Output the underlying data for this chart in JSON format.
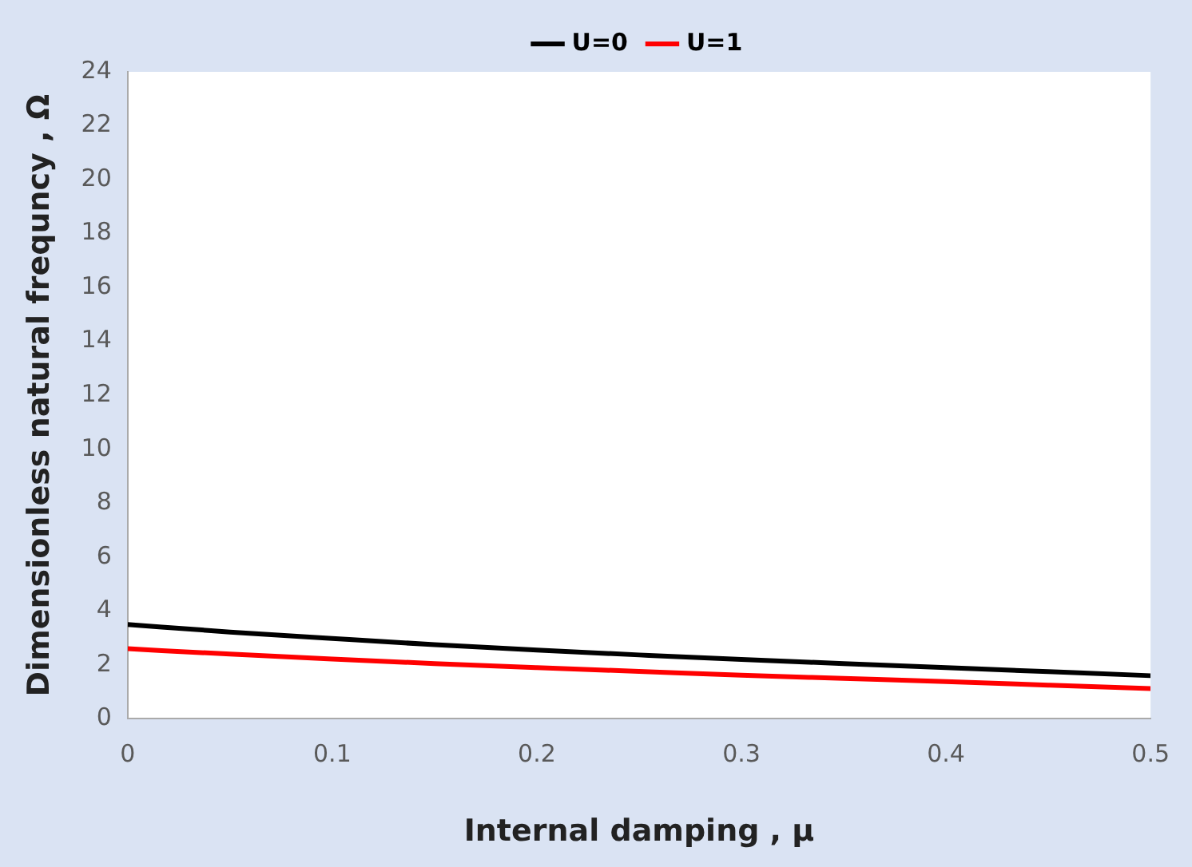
{
  "chart_data": {
    "type": "line",
    "xlabel": "Internal damping , μ",
    "ylabel": "Dimensionless natural frequncy , Ω",
    "x": [
      0,
      0.05,
      0.1,
      0.15,
      0.2,
      0.25,
      0.3,
      0.35,
      0.4,
      0.45,
      0.5
    ],
    "series": [
      {
        "name": "U=0",
        "color": "#000000",
        "values": [
          3.5,
          3.22,
          2.98,
          2.75,
          2.55,
          2.37,
          2.2,
          2.05,
          1.9,
          1.75,
          1.6
        ]
      },
      {
        "name": "U=1",
        "color": "#ff0000",
        "values": [
          2.6,
          2.4,
          2.22,
          2.05,
          1.9,
          1.76,
          1.62,
          1.5,
          1.38,
          1.25,
          1.12
        ]
      }
    ],
    "xlim": [
      0,
      0.5
    ],
    "xticks": [
      0,
      0.1,
      0.2,
      0.3,
      0.4,
      0.5
    ],
    "ylim": [
      0,
      24
    ],
    "yticks": [
      0,
      2,
      4,
      6,
      8,
      10,
      12,
      14,
      16,
      18,
      20,
      22,
      24
    ],
    "grid": false,
    "legend": "top",
    "marker": "none",
    "line_style": "solid"
  }
}
